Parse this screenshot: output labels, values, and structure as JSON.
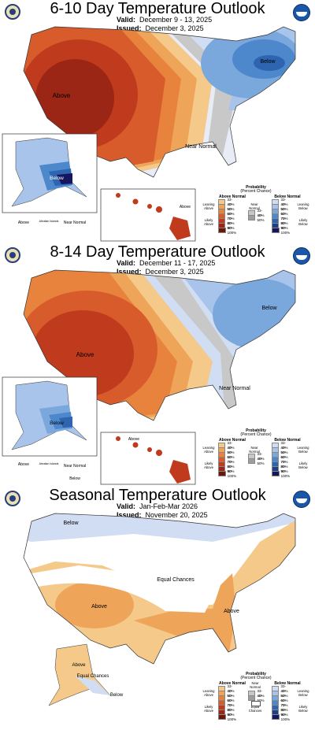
{
  "panels": [
    {
      "title": "6-10 Day Temperature Outlook",
      "valid_label": "Valid:",
      "valid": "December 9 - 13, 2025",
      "issued_label": "Issued:",
      "issued": "December 3, 2025",
      "labels": {
        "above": "Above",
        "below_ne": "Below",
        "near_se": "Near Normal",
        "alaska_below": "Below",
        "alaska_above": "Above",
        "aleutian": "Aleutian Islands",
        "alaska_near": "Near Normal",
        "hawaii_above": "Above"
      }
    },
    {
      "title": "8-14 Day Temperature Outlook",
      "valid_label": "Valid:",
      "valid": "December 11 - 17, 2025",
      "issued_label": "Issued:",
      "issued": "December 3, 2025",
      "labels": {
        "above": "Above",
        "below_ne": "Below",
        "near_se": "Near Normal",
        "alaska_below": "Below",
        "alaska_above": "Above",
        "aleutian": "Aleutian Islands",
        "alaska_near": "Near Normal",
        "alaska_below_sw": "Below",
        "hawaii_above": "Above"
      }
    },
    {
      "title": "Seasonal Temperature Outlook",
      "valid_label": "Valid:",
      "valid": "Jan-Feb-Mar 2026",
      "issued_label": "Issued:",
      "issued": "November 20, 2025",
      "labels": {
        "below_n": "Below",
        "above_sw": "Above",
        "equal": "Equal Chances",
        "above_se": "Above",
        "alaska_above": "Above",
        "alaska_equal": "Equal Chances",
        "alaska_below": "Below"
      }
    }
  ],
  "legend": {
    "title": "Probability",
    "subtitle": "(Percent Chance)",
    "above_normal": "Above Normal",
    "below_normal": "Below Normal",
    "near_normal": "Near Normal",
    "leaning_above": "Leaning Above",
    "likely_above": "Likely Above",
    "leaning_below": "Leaning Below",
    "likely_below": "Likely Below",
    "equal_chances": "Equal Chances",
    "bins": [
      "33-40%",
      "40-50%",
      "50-60%",
      "60-70%",
      "70-80%",
      "80-90%",
      "90-100%"
    ],
    "near_bins": [
      "33-40%",
      "40-50%"
    ],
    "above_colors": [
      "#f5c98a",
      "#eea55a",
      "#e8833e",
      "#d85c2b",
      "#c03a1e",
      "#9b2615",
      "#6b1608"
    ],
    "below_colors": [
      "#d0ddf2",
      "#a9c4ea",
      "#7aa7dc",
      "#4d88cc",
      "#2e64b0",
      "#1d3f86",
      "#16165e"
    ],
    "near_colors": [
      "#c8c8c8",
      "#9e9e9e"
    ]
  },
  "agency_logos": [
    "doc-seal-icon",
    "noaa-logo-icon"
  ]
}
